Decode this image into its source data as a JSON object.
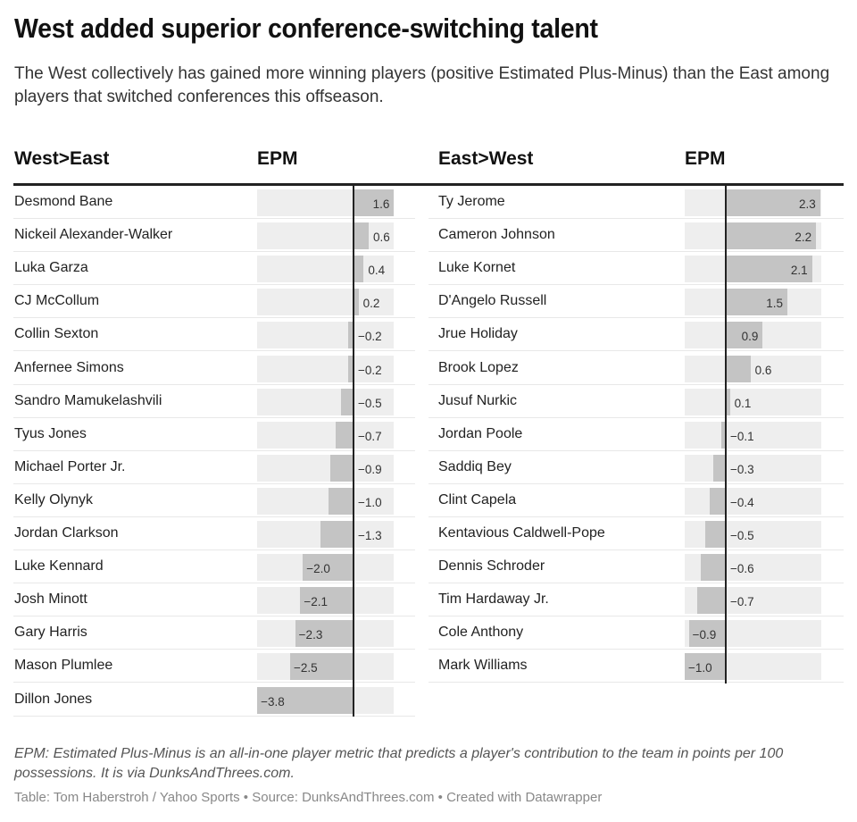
{
  "header": {
    "title": "West added superior conference-switching talent",
    "subtitle": "The West collectively has gained more winning players (positive Estimated Plus-Minus) than the East among players that switched conferences this offseason."
  },
  "left_table": {
    "col_player": "West>East",
    "col_metric": "EPM",
    "rows": [
      {
        "name": "Desmond Bane",
        "epm": 1.6,
        "label": "1.6"
      },
      {
        "name": "Nickeil Alexander-Walker",
        "epm": 0.6,
        "label": "0.6"
      },
      {
        "name": "Luka Garza",
        "epm": 0.4,
        "label": "0.4"
      },
      {
        "name": "CJ McCollum",
        "epm": 0.2,
        "label": "0.2"
      },
      {
        "name": "Collin Sexton",
        "epm": -0.2,
        "label": "−0.2"
      },
      {
        "name": "Anfernee Simons",
        "epm": -0.2,
        "label": "−0.2"
      },
      {
        "name": "Sandro Mamukelashvili",
        "epm": -0.5,
        "label": "−0.5"
      },
      {
        "name": "Tyus Jones",
        "epm": -0.7,
        "label": "−0.7"
      },
      {
        "name": "Michael Porter Jr.",
        "epm": -0.9,
        "label": "−0.9"
      },
      {
        "name": "Kelly Olynyk",
        "epm": -1.0,
        "label": "−1.0"
      },
      {
        "name": "Jordan Clarkson",
        "epm": -1.3,
        "label": "−1.3"
      },
      {
        "name": "Luke Kennard",
        "epm": -2.0,
        "label": "−2.0"
      },
      {
        "name": "Josh Minott",
        "epm": -2.1,
        "label": "−2.1"
      },
      {
        "name": "Gary Harris",
        "epm": -2.3,
        "label": "−2.3"
      },
      {
        "name": "Mason Plumlee",
        "epm": -2.5,
        "label": "−2.5"
      },
      {
        "name": "Dillon Jones",
        "epm": -3.8,
        "label": "−3.8"
      }
    ]
  },
  "right_table": {
    "col_player": "East>West",
    "col_metric": "EPM",
    "rows": [
      {
        "name": "Ty Jerome",
        "epm": 2.3,
        "label": "2.3"
      },
      {
        "name": "Cameron Johnson",
        "epm": 2.2,
        "label": "2.2"
      },
      {
        "name": "Luke Kornet",
        "epm": 2.1,
        "label": "2.1"
      },
      {
        "name": "D'Angelo Russell",
        "epm": 1.5,
        "label": "1.5"
      },
      {
        "name": "Jrue Holiday",
        "epm": 0.9,
        "label": "0.9"
      },
      {
        "name": "Brook Lopez",
        "epm": 0.6,
        "label": "0.6"
      },
      {
        "name": "Jusuf Nurkic",
        "epm": 0.1,
        "label": "0.1"
      },
      {
        "name": "Jordan Poole",
        "epm": -0.1,
        "label": "−0.1"
      },
      {
        "name": "Saddiq Bey",
        "epm": -0.3,
        "label": "−0.3"
      },
      {
        "name": "Clint Capela",
        "epm": -0.4,
        "label": "−0.4"
      },
      {
        "name": "Kentavious Caldwell-Pope",
        "epm": -0.5,
        "label": "−0.5"
      },
      {
        "name": "Dennis Schroder",
        "epm": -0.6,
        "label": "−0.6"
      },
      {
        "name": "Tim Hardaway Jr.",
        "epm": -0.7,
        "label": "−0.7"
      },
      {
        "name": "Cole Anthony",
        "epm": -0.9,
        "label": "−0.9"
      },
      {
        "name": "Mark Williams",
        "epm": -1.0,
        "label": "−1.0"
      }
    ]
  },
  "footer": {
    "notes": "EPM: Estimated Plus-Minus is an all-in-one player metric that predicts a player's contribution to the team in points per 100 possessions. It is via DunksAndThrees.com.",
    "credit": "Table: Tom Haberstroh / Yahoo Sports • Source: DunksAndThrees.com • Created with Datawrapper"
  },
  "colors": {
    "bar": "#c4c4c4",
    "track": "#eeeeee",
    "zero_line": "#222222",
    "header_rule": "#222222"
  },
  "chart_data": [
    {
      "type": "bar",
      "orientation": "horizontal",
      "title": "West>East",
      "xlabel": "EPM",
      "ylabel": "",
      "xlim": [
        -3.8,
        1.6
      ],
      "grid": false,
      "legend": null,
      "categories": [
        "Desmond Bane",
        "Nickeil Alexander-Walker",
        "Luka Garza",
        "CJ McCollum",
        "Collin Sexton",
        "Anfernee Simons",
        "Sandro Mamukelashvili",
        "Tyus Jones",
        "Michael Porter Jr.",
        "Kelly Olynyk",
        "Jordan Clarkson",
        "Luke Kennard",
        "Josh Minott",
        "Gary Harris",
        "Mason Plumlee",
        "Dillon Jones"
      ],
      "values": [
        1.6,
        0.6,
        0.4,
        0.2,
        -0.2,
        -0.2,
        -0.5,
        -0.7,
        -0.9,
        -1.0,
        -1.3,
        -2.0,
        -2.1,
        -2.3,
        -2.5,
        -3.8
      ]
    },
    {
      "type": "bar",
      "orientation": "horizontal",
      "title": "East>West",
      "xlabel": "EPM",
      "ylabel": "",
      "xlim": [
        -1.0,
        2.3
      ],
      "grid": false,
      "legend": null,
      "categories": [
        "Ty Jerome",
        "Cameron Johnson",
        "Luke Kornet",
        "D'Angelo Russell",
        "Jrue Holiday",
        "Brook Lopez",
        "Jusuf Nurkic",
        "Jordan Poole",
        "Saddiq Bey",
        "Clint Capela",
        "Kentavious Caldwell-Pope",
        "Dennis Schroder",
        "Tim Hardaway Jr.",
        "Cole Anthony",
        "Mark Williams"
      ],
      "values": [
        2.3,
        2.2,
        2.1,
        1.5,
        0.9,
        0.6,
        0.1,
        -0.1,
        -0.3,
        -0.4,
        -0.5,
        -0.6,
        -0.7,
        -0.9,
        -1.0
      ]
    }
  ]
}
